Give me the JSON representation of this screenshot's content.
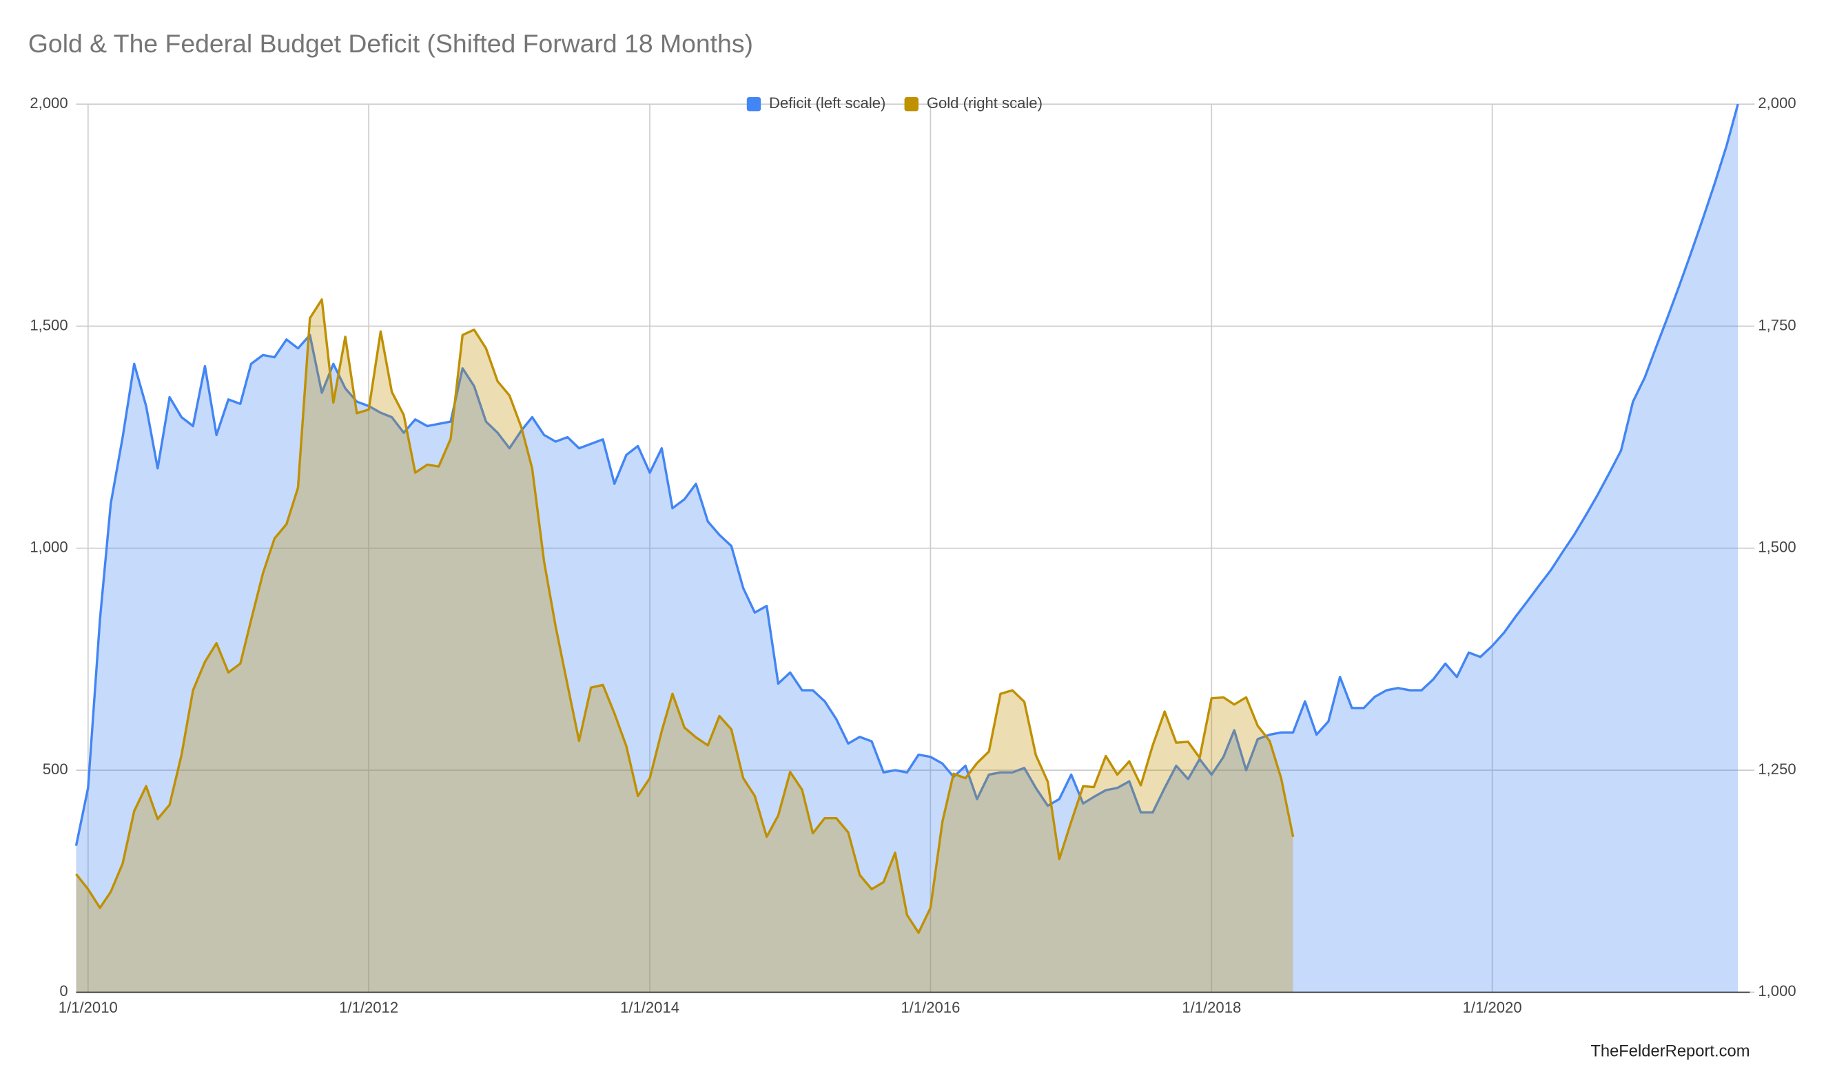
{
  "chart_data": {
    "type": "area",
    "title": "Gold & The Federal Budget Deficit (Shifted Forward 18 Months)",
    "source": "TheFelderReport.com",
    "legend": "top",
    "grid": true,
    "x": [
      "2009-12-01",
      "2010-01-01",
      "2010-02-01",
      "2010-03-01",
      "2010-04-01",
      "2010-05-01",
      "2010-06-01",
      "2010-07-01",
      "2010-08-01",
      "2010-09-01",
      "2010-10-01",
      "2010-11-01",
      "2010-12-01",
      "2011-01-01",
      "2011-02-01",
      "2011-03-01",
      "2011-04-01",
      "2011-05-01",
      "2011-06-01",
      "2011-07-01",
      "2011-08-01",
      "2011-09-01",
      "2011-10-01",
      "2011-11-01",
      "2011-12-01",
      "2012-01-01",
      "2012-02-01",
      "2012-03-01",
      "2012-04-01",
      "2012-05-01",
      "2012-06-01",
      "2012-07-01",
      "2012-08-01",
      "2012-09-01",
      "2012-10-01",
      "2012-11-01",
      "2012-12-01",
      "2013-01-01",
      "2013-02-01",
      "2013-03-01",
      "2013-04-01",
      "2013-05-01",
      "2013-06-01",
      "2013-07-01",
      "2013-08-01",
      "2013-09-01",
      "2013-10-01",
      "2013-11-01",
      "2013-12-01",
      "2014-01-01",
      "2014-02-01",
      "2014-03-01",
      "2014-04-01",
      "2014-05-01",
      "2014-06-01",
      "2014-07-01",
      "2014-08-01",
      "2014-09-01",
      "2014-10-01",
      "2014-11-01",
      "2014-12-01",
      "2015-01-01",
      "2015-02-01",
      "2015-03-01",
      "2015-04-01",
      "2015-05-01",
      "2015-06-01",
      "2015-07-01",
      "2015-08-01",
      "2015-09-01",
      "2015-10-01",
      "2015-11-01",
      "2015-12-01",
      "2016-01-01",
      "2016-02-01",
      "2016-03-01",
      "2016-04-01",
      "2016-05-01",
      "2016-06-01",
      "2016-07-01",
      "2016-08-01",
      "2016-09-01",
      "2016-10-01",
      "2016-11-01",
      "2016-12-01",
      "2017-01-01",
      "2017-02-01",
      "2017-03-01",
      "2017-04-01",
      "2017-05-01",
      "2017-06-01",
      "2017-07-01",
      "2017-08-01",
      "2017-09-01",
      "2017-10-01",
      "2017-11-01",
      "2017-12-01",
      "2018-01-01",
      "2018-02-01",
      "2018-03-01",
      "2018-04-01",
      "2018-05-01",
      "2018-06-01",
      "2018-07-01",
      "2018-08-01",
      "2018-09-01",
      "2018-10-01",
      "2018-11-01",
      "2018-12-01",
      "2019-01-01",
      "2019-02-01",
      "2019-03-01",
      "2019-04-01",
      "2019-05-01",
      "2019-06-01",
      "2019-07-01",
      "2019-08-01",
      "2019-09-01",
      "2019-10-01",
      "2019-11-01",
      "2019-12-01",
      "2020-01-01",
      "2020-02-01",
      "2020-03-01",
      "2020-04-01",
      "2020-05-01",
      "2020-06-01",
      "2020-07-01",
      "2020-08-01",
      "2020-09-01",
      "2020-10-01",
      "2020-11-01",
      "2020-12-01",
      "2021-01-01",
      "2021-02-01",
      "2021-03-01",
      "2021-04-01",
      "2021-05-01",
      "2021-06-01",
      "2021-07-01",
      "2021-08-01",
      "2021-09-01",
      "2021-10-01"
    ],
    "xlim": [
      "2009-12-01",
      "2021-11-01"
    ],
    "xticks": [
      {
        "value": "2010-01-01",
        "label": "1/1/2010"
      },
      {
        "value": "2012-01-01",
        "label": "1/1/2012"
      },
      {
        "value": "2014-01-01",
        "label": "1/1/2014"
      },
      {
        "value": "2016-01-01",
        "label": "1/1/2016"
      },
      {
        "value": "2018-01-01",
        "label": "1/1/2018"
      },
      {
        "value": "2020-01-01",
        "label": "1/1/2020"
      }
    ],
    "ylim": [
      0,
      2000
    ],
    "yticks": [
      0,
      500,
      {
        "value": 1000,
        "label": "1,000"
      },
      {
        "value": 1500,
        "label": "1,500"
      },
      {
        "value": 2000,
        "label": "2,000"
      }
    ],
    "y2lim": [
      1000,
      2000
    ],
    "y2ticks": [
      {
        "value": 1000,
        "label": "1,000"
      },
      {
        "value": 1250,
        "label": "1,250"
      },
      {
        "value": 1500,
        "label": "1,500"
      },
      {
        "value": 1750,
        "label": "1,750"
      },
      {
        "value": 2000,
        "label": "2,000"
      }
    ],
    "series": [
      {
        "name": "Deficit (left scale)",
        "color": "#4285f4",
        "axis": "y",
        "values": [
          330,
          460,
          840,
          1100,
          1250,
          1415,
          1320,
          1180,
          1340,
          1295,
          1275,
          1410,
          1255,
          1335,
          1325,
          1415,
          1435,
          1430,
          1470,
          1450,
          1480,
          1350,
          1415,
          1360,
          1330,
          1320,
          1305,
          1295,
          1260,
          1290,
          1275,
          1280,
          1285,
          1405,
          1365,
          1285,
          1260,
          1225,
          1265,
          1295,
          1255,
          1240,
          1250,
          1225,
          1235,
          1245,
          1145,
          1210,
          1230,
          1170,
          1225,
          1090,
          1110,
          1145,
          1060,
          1030,
          1005,
          910,
          855,
          870,
          695,
          720,
          680,
          680,
          655,
          615,
          560,
          575,
          565,
          495,
          500,
          495,
          535,
          530,
          515,
          485,
          510,
          435,
          490,
          495,
          495,
          505,
          460,
          420,
          435,
          490,
          425,
          440,
          455,
          460,
          475,
          405,
          405,
          460,
          510,
          480,
          525,
          490,
          530,
          590,
          500,
          570,
          580,
          585,
          585,
          655,
          580,
          610,
          710,
          640,
          640,
          665,
          680,
          685,
          680,
          680,
          705,
          740,
          710,
          765,
          755,
          780,
          810,
          845,
          880,
          915,
          950,
          990,
          1030,
          1075,
          1120,
          1170,
          1220,
          1330,
          1385,
          1450,
          1520,
          1590,
          1665,
          1740,
          1820,
          1905,
          2000
        ]
      },
      {
        "name": "Gold (right scale)",
        "color": "#bf9000",
        "axis": "y2",
        "values": [
          1133,
          1116,
          1095,
          1113,
          1145,
          1204,
          1232,
          1195,
          1211,
          1267,
          1340,
          1372,
          1393,
          1360,
          1370,
          1419,
          1472,
          1511,
          1527,
          1568,
          1759,
          1780,
          1664,
          1738,
          1652,
          1656,
          1744,
          1676,
          1650,
          1585,
          1594,
          1592,
          1623,
          1740,
          1746,
          1725,
          1688,
          1672,
          1636,
          1590,
          1485,
          1412,
          1346,
          1283,
          1343,
          1346,
          1314,
          1277,
          1221,
          1241,
          1294,
          1336,
          1298,
          1287,
          1278,
          1311,
          1296,
          1241,
          1221,
          1175,
          1199,
          1248,
          1228,
          1179,
          1196,
          1196,
          1180,
          1132,
          1116,
          1124,
          1157,
          1087,
          1067,
          1095,
          1192,
          1246,
          1241,
          1258,
          1271,
          1336,
          1340,
          1327,
          1267,
          1237,
          1150,
          1192,
          1232,
          1231,
          1266,
          1245,
          1260,
          1233,
          1278,
          1316,
          1281,
          1282,
          1264,
          1331,
          1332,
          1324,
          1332,
          1300,
          1283,
          1241,
          1175,
          null,
          null,
          null,
          null,
          null,
          null,
          null,
          null,
          null,
          null,
          null,
          null,
          null,
          null,
          null,
          null,
          null,
          null,
          null,
          null,
          null,
          null,
          null,
          null,
          null,
          null,
          null,
          null,
          null,
          null,
          null,
          null,
          null,
          null,
          null,
          null,
          null,
          null
        ]
      }
    ]
  }
}
